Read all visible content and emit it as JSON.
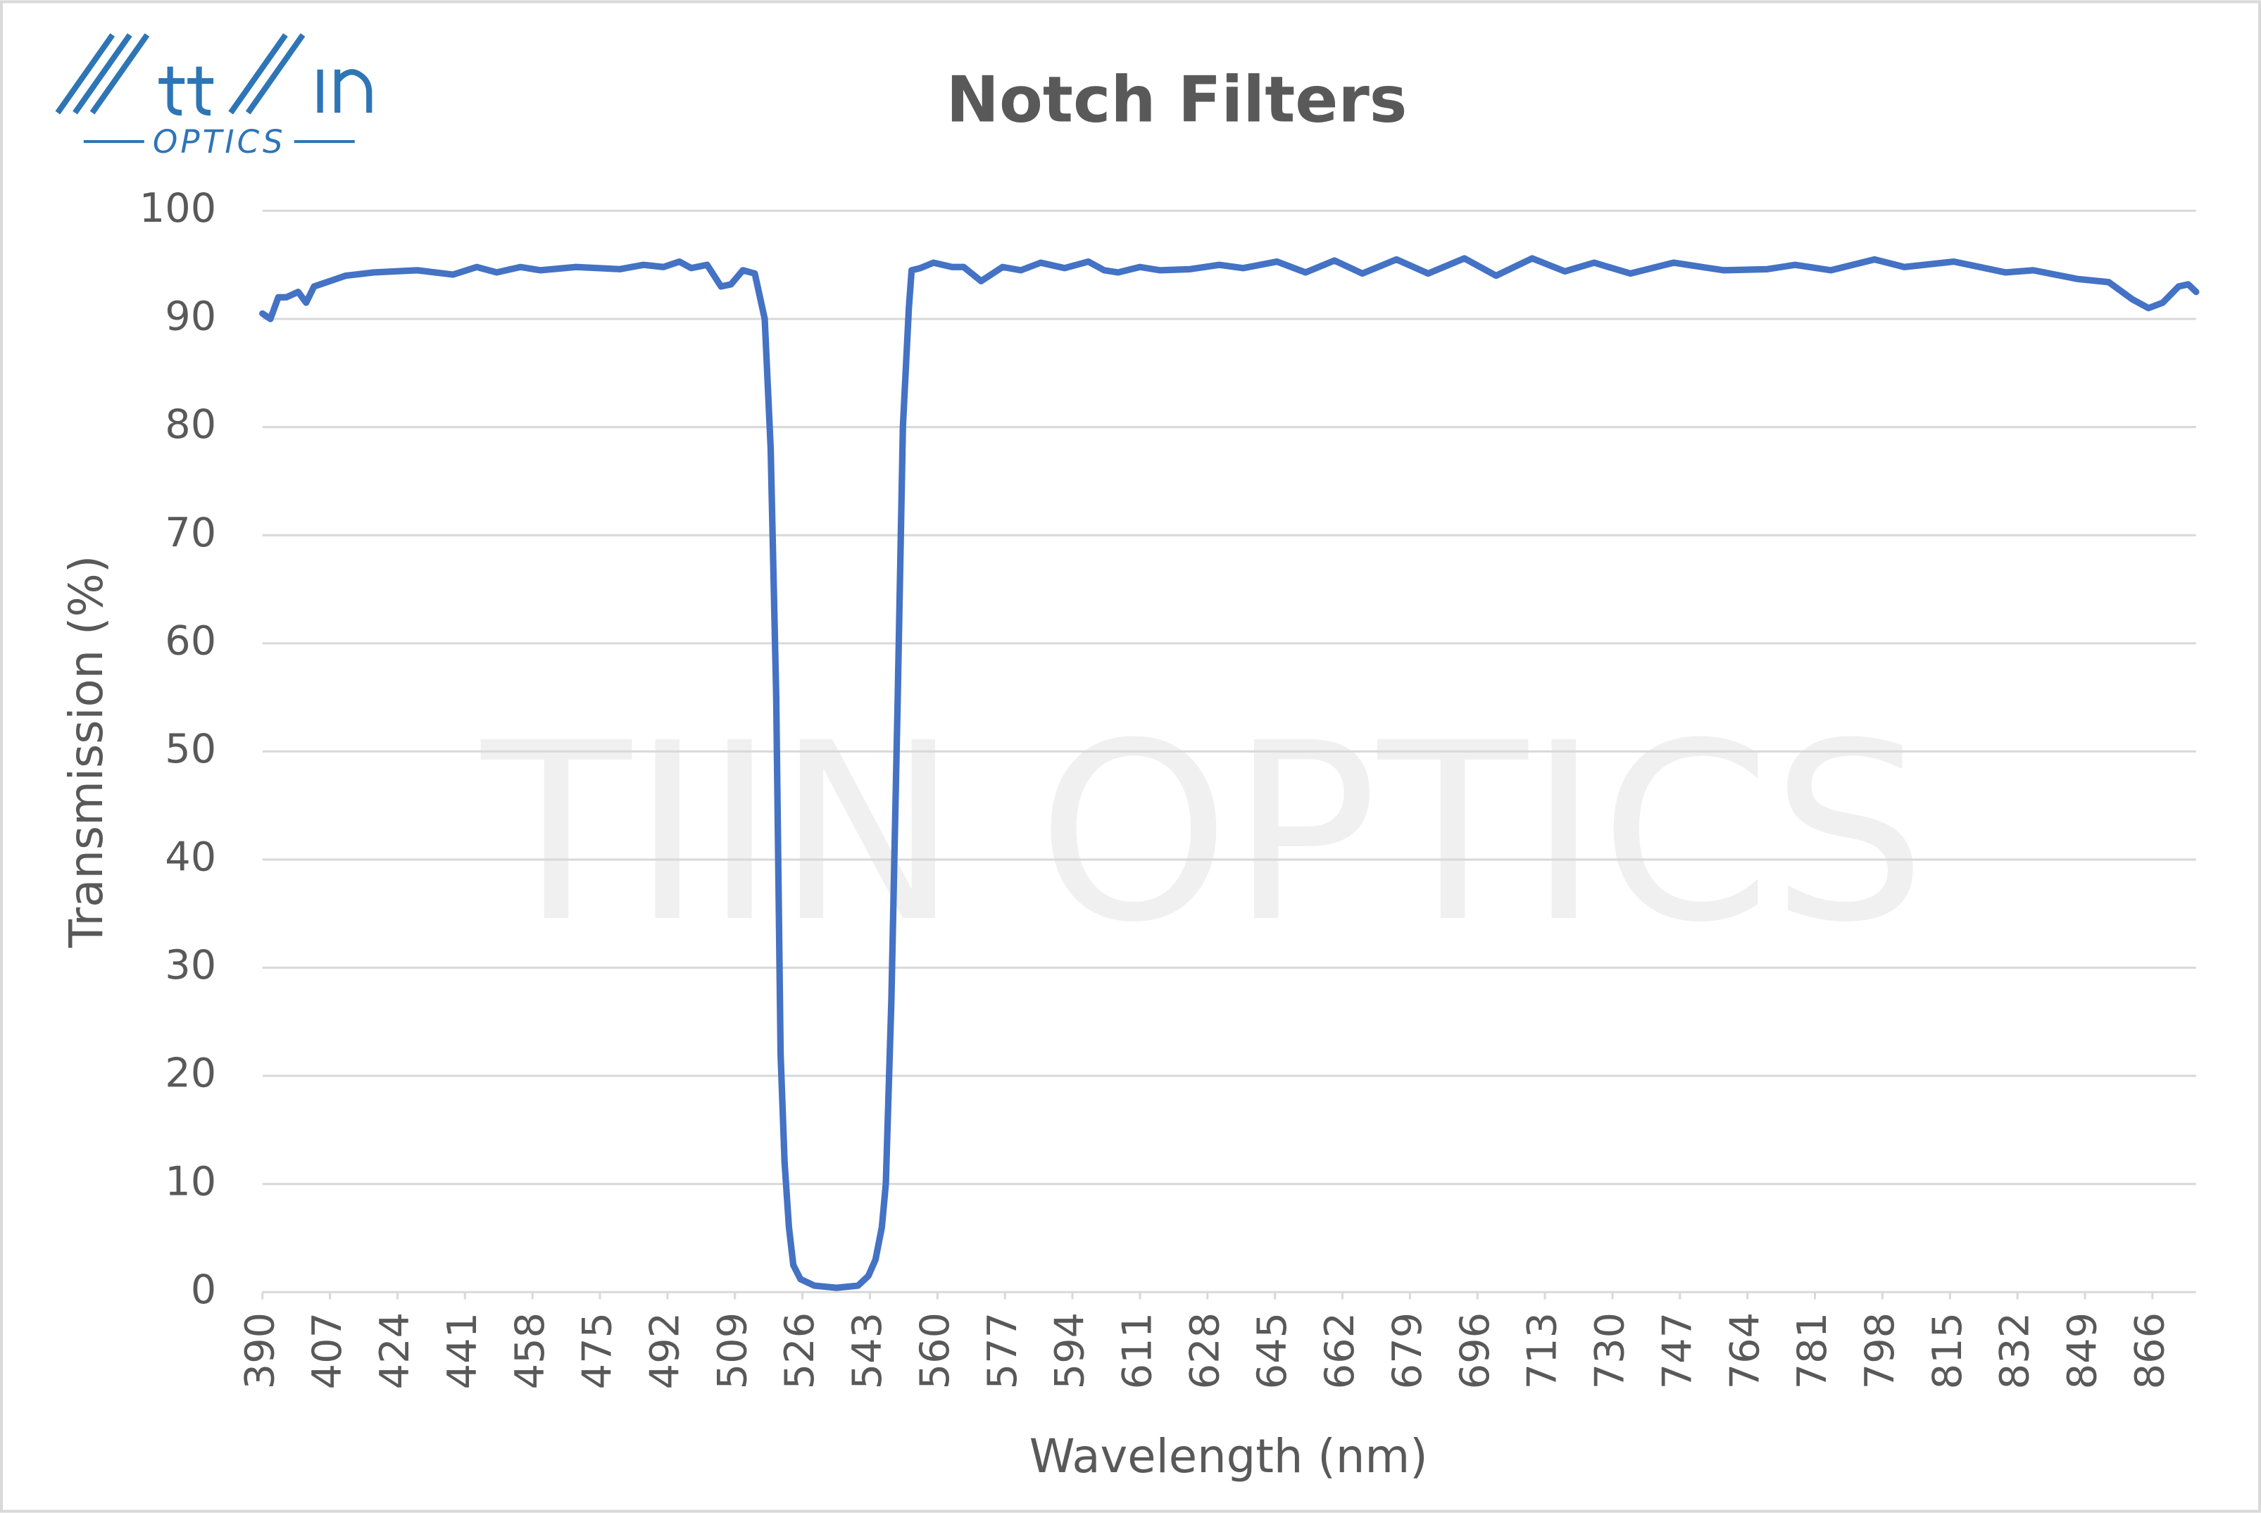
{
  "chart_data": {
    "type": "line",
    "title": "Notch Filters",
    "xlabel": "Wavelength (nm)",
    "ylabel": "Transmission (%)",
    "watermark": "TIIN OPTICS",
    "logo_text": "OPTICS",
    "x": [
      390,
      392,
      394,
      396,
      399,
      401,
      403,
      407,
      411,
      418,
      429,
      438,
      444,
      449,
      455,
      460,
      469,
      480,
      486,
      491,
      495,
      498,
      502,
      505.5,
      508,
      511,
      514,
      516.5,
      518,
      519.4,
      520.5,
      521.5,
      522.6,
      523.7,
      525.5,
      529,
      534.6,
      540,
      542.6,
      544.4,
      546,
      547,
      548.4,
      550,
      551.3,
      552.8,
      553.5,
      555.7,
      559,
      563.7,
      566.6,
      571,
      576.4,
      581,
      586,
      592,
      598,
      602,
      605.5,
      611,
      616,
      623.6,
      631,
      637,
      645.5,
      652.7,
      660,
      667,
      675.6,
      683.6,
      692.7,
      700.7,
      709.8,
      718,
      725.4,
      734.5,
      745.4,
      758,
      769,
      776,
      785,
      796,
      803.5,
      816,
      829,
      836,
      847,
      855,
      861,
      865,
      868.6,
      872.6,
      875,
      877
    ],
    "series": [
      {
        "color": "#4472c4",
        "values": [
          90.5,
          90,
          92,
          92,
          92.5,
          91.5,
          93,
          93.5,
          94,
          94.3,
          94.5,
          94.1,
          94.8,
          94.3,
          94.8,
          94.5,
          94.8,
          94.6,
          95,
          94.8,
          95.3,
          94.7,
          95,
          93,
          93.2,
          94.5,
          94.2,
          90,
          78,
          55,
          22,
          12,
          6,
          2.5,
          1.2,
          0.6,
          0.4,
          0.6,
          1.5,
          3,
          6,
          10,
          27,
          55,
          80,
          91,
          94.5,
          94.7,
          95.2,
          94.8,
          94.8,
          93.5,
          94.8,
          94.5,
          95.2,
          94.7,
          95.3,
          94.5,
          94.3,
          94.8,
          94.5,
          94.6,
          95,
          94.7,
          95.3,
          94.3,
          95.4,
          94.2,
          95.5,
          94.2,
          95.6,
          94,
          95.6,
          94.4,
          95.2,
          94.2,
          95.2,
          94.5,
          94.6,
          95,
          94.5,
          95.5,
          94.8,
          95.3,
          94.3,
          94.5,
          93.7,
          93.4,
          91.8,
          91,
          91.5,
          93,
          93.2,
          92.5
        ]
      }
    ],
    "xlim": [
      390,
      877
    ],
    "xticks": [
      390,
      407,
      424,
      441,
      458,
      475,
      492,
      509,
      526,
      543,
      560,
      577,
      594,
      611,
      628,
      645,
      662,
      679,
      696,
      713,
      730,
      747,
      764,
      781,
      798,
      815,
      832,
      849,
      866
    ],
    "ylim": [
      0,
      100
    ],
    "yticks": [
      0,
      10,
      20,
      30,
      40,
      50,
      60,
      70,
      80,
      90,
      100
    ],
    "grid": true
  }
}
